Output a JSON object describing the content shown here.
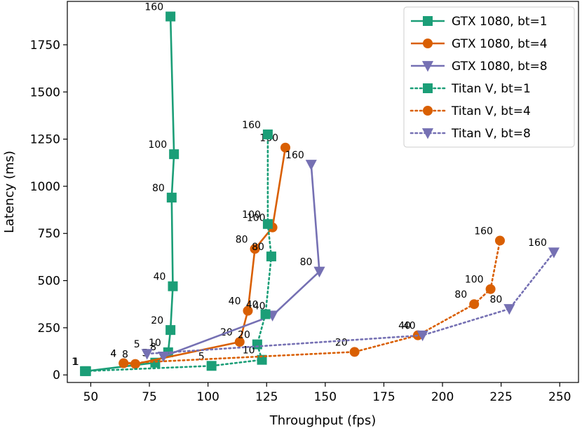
{
  "chart_data": {
    "type": "line",
    "xlabel": "Throughput (fps)",
    "ylabel": "Latency (ms)",
    "xlim": [
      40,
      258
    ],
    "ylim": [
      -40,
      1980
    ],
    "xticks": [
      50,
      75,
      100,
      125,
      150,
      175,
      200,
      225,
      250
    ],
    "yticks": [
      0,
      250,
      500,
      750,
      1000,
      1250,
      1500,
      1750
    ],
    "grid": false,
    "legend_position": "top-right",
    "series": [
      {
        "name": "GTX 1080, bt=1",
        "color": "#1b9e77",
        "marker": "square",
        "linestyle": "solid",
        "points": [
          {
            "x": 48,
            "y": 20,
            "label": "1"
          },
          {
            "x": 77.5,
            "y": 65,
            "label": "5"
          },
          {
            "x": 83,
            "y": 120,
            "label": "10"
          },
          {
            "x": 84,
            "y": 238,
            "label": "20"
          },
          {
            "x": 85,
            "y": 470,
            "label": "40"
          },
          {
            "x": 84.5,
            "y": 940,
            "label": "80"
          },
          {
            "x": 85.5,
            "y": 1170,
            "label": "100"
          },
          {
            "x": 84,
            "y": 1900,
            "label": "160"
          }
        ]
      },
      {
        "name": "GTX 1080, bt=4",
        "color": "#d95f02",
        "marker": "circle",
        "linestyle": "solid",
        "points": [
          {
            "x": 64,
            "y": 62,
            "label": "4"
          },
          {
            "x": 69,
            "y": 58,
            "label": "8"
          },
          {
            "x": 113.5,
            "y": 175,
            "label": "20"
          },
          {
            "x": 117,
            "y": 340,
            "label": "40"
          },
          {
            "x": 120,
            "y": 668,
            "label": "80"
          },
          {
            "x": 127.5,
            "y": 782,
            "label": "100"
          },
          {
            "x": 133,
            "y": 1205,
            "label": "160"
          }
        ]
      },
      {
        "name": "GTX 1080, bt=8",
        "color": "#7570b3",
        "marker": "triangle-down",
        "linestyle": "solid",
        "points": [
          {
            "x": 81,
            "y": 98,
            "label": "8"
          },
          {
            "x": 127.5,
            "y": 315,
            "label": "40"
          },
          {
            "x": 147.5,
            "y": 548,
            "label": "80"
          },
          {
            "x": 144,
            "y": 1115,
            "label": "160"
          }
        ]
      },
      {
        "name": "Titan V, bt=1",
        "color": "#1b9e77",
        "marker": "square",
        "linestyle": "dotted",
        "points": [
          {
            "x": 47.5,
            "y": 20,
            "label": "1"
          },
          {
            "x": 101.5,
            "y": 48,
            "label": "5"
          },
          {
            "x": 123,
            "y": 80,
            "label": "10"
          },
          {
            "x": 121,
            "y": 162,
            "label": "20"
          },
          {
            "x": 124.5,
            "y": 322,
            "label": "40"
          },
          {
            "x": 127,
            "y": 628,
            "label": "80"
          },
          {
            "x": 125.5,
            "y": 800,
            "label": "100"
          },
          {
            "x": 125.5,
            "y": 1275,
            "label": "160"
          }
        ]
      },
      {
        "name": "Titan V, bt=4",
        "color": "#d95f02",
        "marker": "circle",
        "linestyle": "dotted",
        "points": [
          {
            "x": 64,
            "y": 62,
            "label": "4"
          },
          {
            "x": 162.5,
            "y": 122,
            "label": "20"
          },
          {
            "x": 189.5,
            "y": 210,
            "label": "40"
          },
          {
            "x": 213.5,
            "y": 375,
            "label": "80"
          },
          {
            "x": 220.5,
            "y": 455,
            "label": "100"
          },
          {
            "x": 224.5,
            "y": 712,
            "label": "160"
          }
        ]
      },
      {
        "name": "Titan V, bt=8",
        "color": "#7570b3",
        "marker": "triangle-down",
        "linestyle": "dotted",
        "points": [
          {
            "x": 74,
            "y": 112,
            "label": "5"
          },
          {
            "x": 191.5,
            "y": 210,
            "label": "40"
          },
          {
            "x": 228.5,
            "y": 350,
            "label": "80"
          },
          {
            "x": 247.5,
            "y": 650,
            "label": "160"
          }
        ]
      }
    ]
  }
}
